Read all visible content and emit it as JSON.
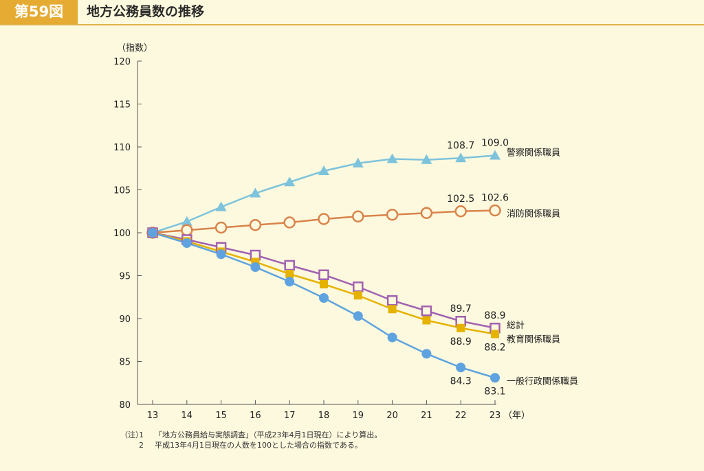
{
  "header": {
    "figure_number": "第59図",
    "title": "地方公務員数の推移"
  },
  "chart_data": {
    "type": "line",
    "ylabel": "（指数）",
    "xlabel": "（年）",
    "categories": [
      "13",
      "14",
      "15",
      "16",
      "17",
      "18",
      "19",
      "20",
      "21",
      "22",
      "23"
    ],
    "ylim": [
      80,
      120
    ],
    "yticks": [
      80,
      85,
      90,
      95,
      100,
      105,
      110,
      115,
      120
    ],
    "series": [
      {
        "name": "警察関係職員",
        "color": "#7dc3dc",
        "marker": "triangle",
        "values": [
          100.0,
          101.3,
          103.0,
          104.6,
          105.9,
          107.2,
          108.1,
          108.6,
          108.5,
          108.7,
          109.0
        ]
      },
      {
        "name": "消防関係職員",
        "color": "#d9834a",
        "marker": "circle-open",
        "values": [
          100.0,
          100.3,
          100.6,
          100.9,
          101.2,
          101.6,
          101.9,
          102.1,
          102.3,
          102.5,
          102.6
        ]
      },
      {
        "name": "総計",
        "color": "#a161b1",
        "marker": "square-open",
        "values": [
          100.0,
          99.2,
          98.3,
          97.4,
          96.2,
          95.1,
          93.7,
          92.1,
          90.9,
          89.7,
          88.9
        ]
      },
      {
        "name": "教育関係職員",
        "color": "#e6b200",
        "marker": "square-filled",
        "values": [
          100.0,
          99.0,
          97.8,
          96.6,
          95.2,
          94.0,
          92.7,
          91.1,
          89.8,
          88.9,
          88.2
        ]
      },
      {
        "name": "一般行政関係職員",
        "color": "#5ea3df",
        "marker": "circle-filled",
        "values": [
          100.0,
          98.8,
          97.5,
          96.0,
          94.3,
          92.4,
          90.3,
          87.8,
          85.9,
          84.3,
          83.1
        ]
      }
    ],
    "data_labels": [
      {
        "series": "警察関係職員",
        "index": 9,
        "text": "108.7",
        "pos": "above"
      },
      {
        "series": "警察関係職員",
        "index": 10,
        "text": "109.0",
        "pos": "above"
      },
      {
        "series": "消防関係職員",
        "index": 9,
        "text": "102.5",
        "pos": "above"
      },
      {
        "series": "消防関係職員",
        "index": 10,
        "text": "102.6",
        "pos": "above"
      },
      {
        "series": "総計",
        "index": 9,
        "text": "89.7",
        "pos": "above"
      },
      {
        "series": "総計",
        "index": 10,
        "text": "88.9",
        "pos": "above"
      },
      {
        "series": "教育関係職員",
        "index": 9,
        "text": "88.9",
        "pos": "below"
      },
      {
        "series": "教育関係職員",
        "index": 10,
        "text": "88.2",
        "pos": "below"
      },
      {
        "series": "一般行政関係職員",
        "index": 9,
        "text": "84.3",
        "pos": "below"
      },
      {
        "series": "一般行政関係職員",
        "index": 10,
        "text": "83.1",
        "pos": "below"
      }
    ]
  },
  "notes": {
    "prefix": "（注）",
    "items": [
      {
        "num": "1",
        "text": "「地方公務員給与実態調査」（平成23年4月1日現在）により算出。"
      },
      {
        "num": "2",
        "text": "平成13年4月1日現在の人数を100とした場合の指数である。"
      }
    ]
  }
}
